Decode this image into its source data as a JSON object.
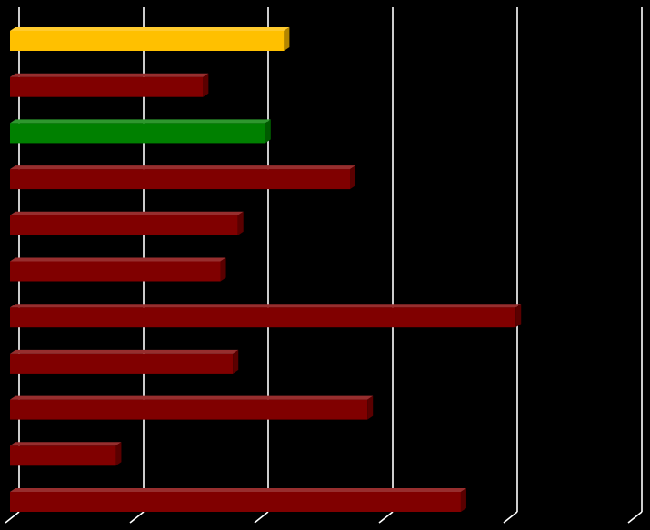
{
  "chart_data": {
    "type": "bar",
    "orientation": "horizontal",
    "style": "3d",
    "title": "",
    "xlabel": "",
    "ylabel": "",
    "grid": true,
    "tick_labels_visible": false,
    "xlim": [
      0,
      5
    ],
    "grid_values": [
      0,
      1,
      2,
      3,
      4,
      5
    ],
    "categories": [
      "",
      "",
      "",
      "",
      "",
      "",
      "",
      "",
      "",
      "",
      ""
    ],
    "values": [
      2.2,
      1.55,
      2.05,
      2.73,
      1.83,
      1.69,
      4.06,
      1.79,
      2.87,
      0.85,
      3.62
    ],
    "colors": [
      "#FFC000",
      "#800000",
      "#008000",
      "#800000",
      "#800000",
      "#800000",
      "#800000",
      "#800000",
      "#800000",
      "#800000",
      "#800000"
    ],
    "background": "#000000",
    "grid_color": "#FFFFFF"
  }
}
